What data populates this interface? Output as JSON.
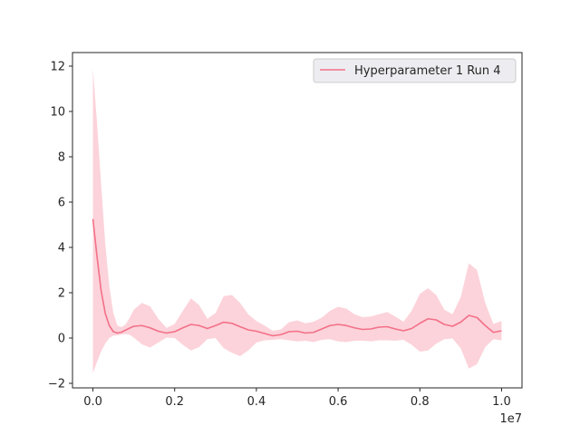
{
  "chart_data": {
    "type": "line",
    "title": "",
    "xlabel": "",
    "ylabel": "",
    "x_offset_label": "1e7",
    "xlim": [
      -0.05,
      1.05
    ],
    "ylim": [
      -2.2,
      12.6
    ],
    "x_ticks": [
      0.0,
      0.2,
      0.4,
      0.6,
      0.8,
      1.0
    ],
    "x_tick_labels": [
      "0.0",
      "0.2",
      "0.4",
      "0.6",
      "0.8",
      "1.0"
    ],
    "y_ticks": [
      -2,
      0,
      2,
      4,
      6,
      8,
      10,
      12
    ],
    "y_tick_labels": [
      "−2",
      "0",
      "2",
      "4",
      "6",
      "8",
      "10",
      "12"
    ],
    "grid": false,
    "legend_position": "top-right",
    "series": [
      {
        "name": "Hyperparameter 1 Run 4",
        "color": "#f37088",
        "band_color": "#fcd3da",
        "x": [
          0.0,
          0.01,
          0.02,
          0.03,
          0.04,
          0.05,
          0.06,
          0.07,
          0.08,
          0.09,
          0.1,
          0.12,
          0.14,
          0.16,
          0.18,
          0.2,
          0.22,
          0.24,
          0.26,
          0.28,
          0.3,
          0.32,
          0.34,
          0.36,
          0.38,
          0.4,
          0.42,
          0.44,
          0.46,
          0.48,
          0.5,
          0.52,
          0.54,
          0.56,
          0.58,
          0.6,
          0.62,
          0.64,
          0.66,
          0.68,
          0.7,
          0.72,
          0.74,
          0.76,
          0.78,
          0.8,
          0.82,
          0.84,
          0.86,
          0.88,
          0.9,
          0.92,
          0.94,
          0.96,
          0.98,
          1.0
        ],
        "mean": [
          5.25,
          3.6,
          2.1,
          1.1,
          0.55,
          0.28,
          0.22,
          0.26,
          0.35,
          0.44,
          0.52,
          0.55,
          0.45,
          0.3,
          0.22,
          0.28,
          0.45,
          0.6,
          0.55,
          0.42,
          0.55,
          0.7,
          0.65,
          0.5,
          0.36,
          0.3,
          0.2,
          0.1,
          0.15,
          0.28,
          0.3,
          0.22,
          0.25,
          0.4,
          0.55,
          0.6,
          0.55,
          0.45,
          0.38,
          0.4,
          0.48,
          0.5,
          0.4,
          0.32,
          0.42,
          0.65,
          0.85,
          0.8,
          0.6,
          0.52,
          0.7,
          1.0,
          0.9,
          0.55,
          0.25,
          0.32
        ],
        "upper": [
          11.9,
          9.5,
          6.8,
          4.2,
          2.3,
          1.1,
          0.55,
          0.48,
          0.6,
          0.9,
          1.25,
          1.55,
          1.4,
          0.85,
          0.45,
          0.62,
          1.2,
          1.75,
          1.45,
          0.85,
          1.1,
          1.85,
          1.9,
          1.55,
          1.05,
          0.75,
          0.55,
          0.32,
          0.38,
          0.7,
          0.78,
          0.65,
          0.72,
          0.9,
          1.2,
          1.38,
          1.3,
          1.05,
          0.92,
          0.95,
          1.05,
          1.15,
          0.95,
          0.72,
          1.2,
          1.95,
          2.2,
          1.9,
          1.25,
          1.05,
          1.8,
          3.3,
          3.0,
          1.55,
          0.62,
          0.75
        ],
        "lower": [
          -1.55,
          -1.05,
          -0.6,
          -0.25,
          0.0,
          0.1,
          0.12,
          0.15,
          0.18,
          0.14,
          0.02,
          -0.28,
          -0.42,
          -0.2,
          0.02,
          0.0,
          -0.3,
          -0.55,
          -0.4,
          -0.05,
          0.0,
          -0.45,
          -0.65,
          -0.8,
          -0.55,
          -0.2,
          -0.1,
          -0.08,
          -0.05,
          -0.1,
          -0.15,
          -0.12,
          -0.18,
          -0.08,
          -0.05,
          -0.15,
          -0.18,
          -0.12,
          -0.12,
          -0.15,
          -0.1,
          -0.1,
          -0.12,
          -0.08,
          -0.3,
          -0.6,
          -0.55,
          -0.25,
          -0.05,
          -0.02,
          -0.45,
          -1.35,
          -1.15,
          -0.4,
          -0.05,
          -0.1
        ]
      }
    ]
  }
}
